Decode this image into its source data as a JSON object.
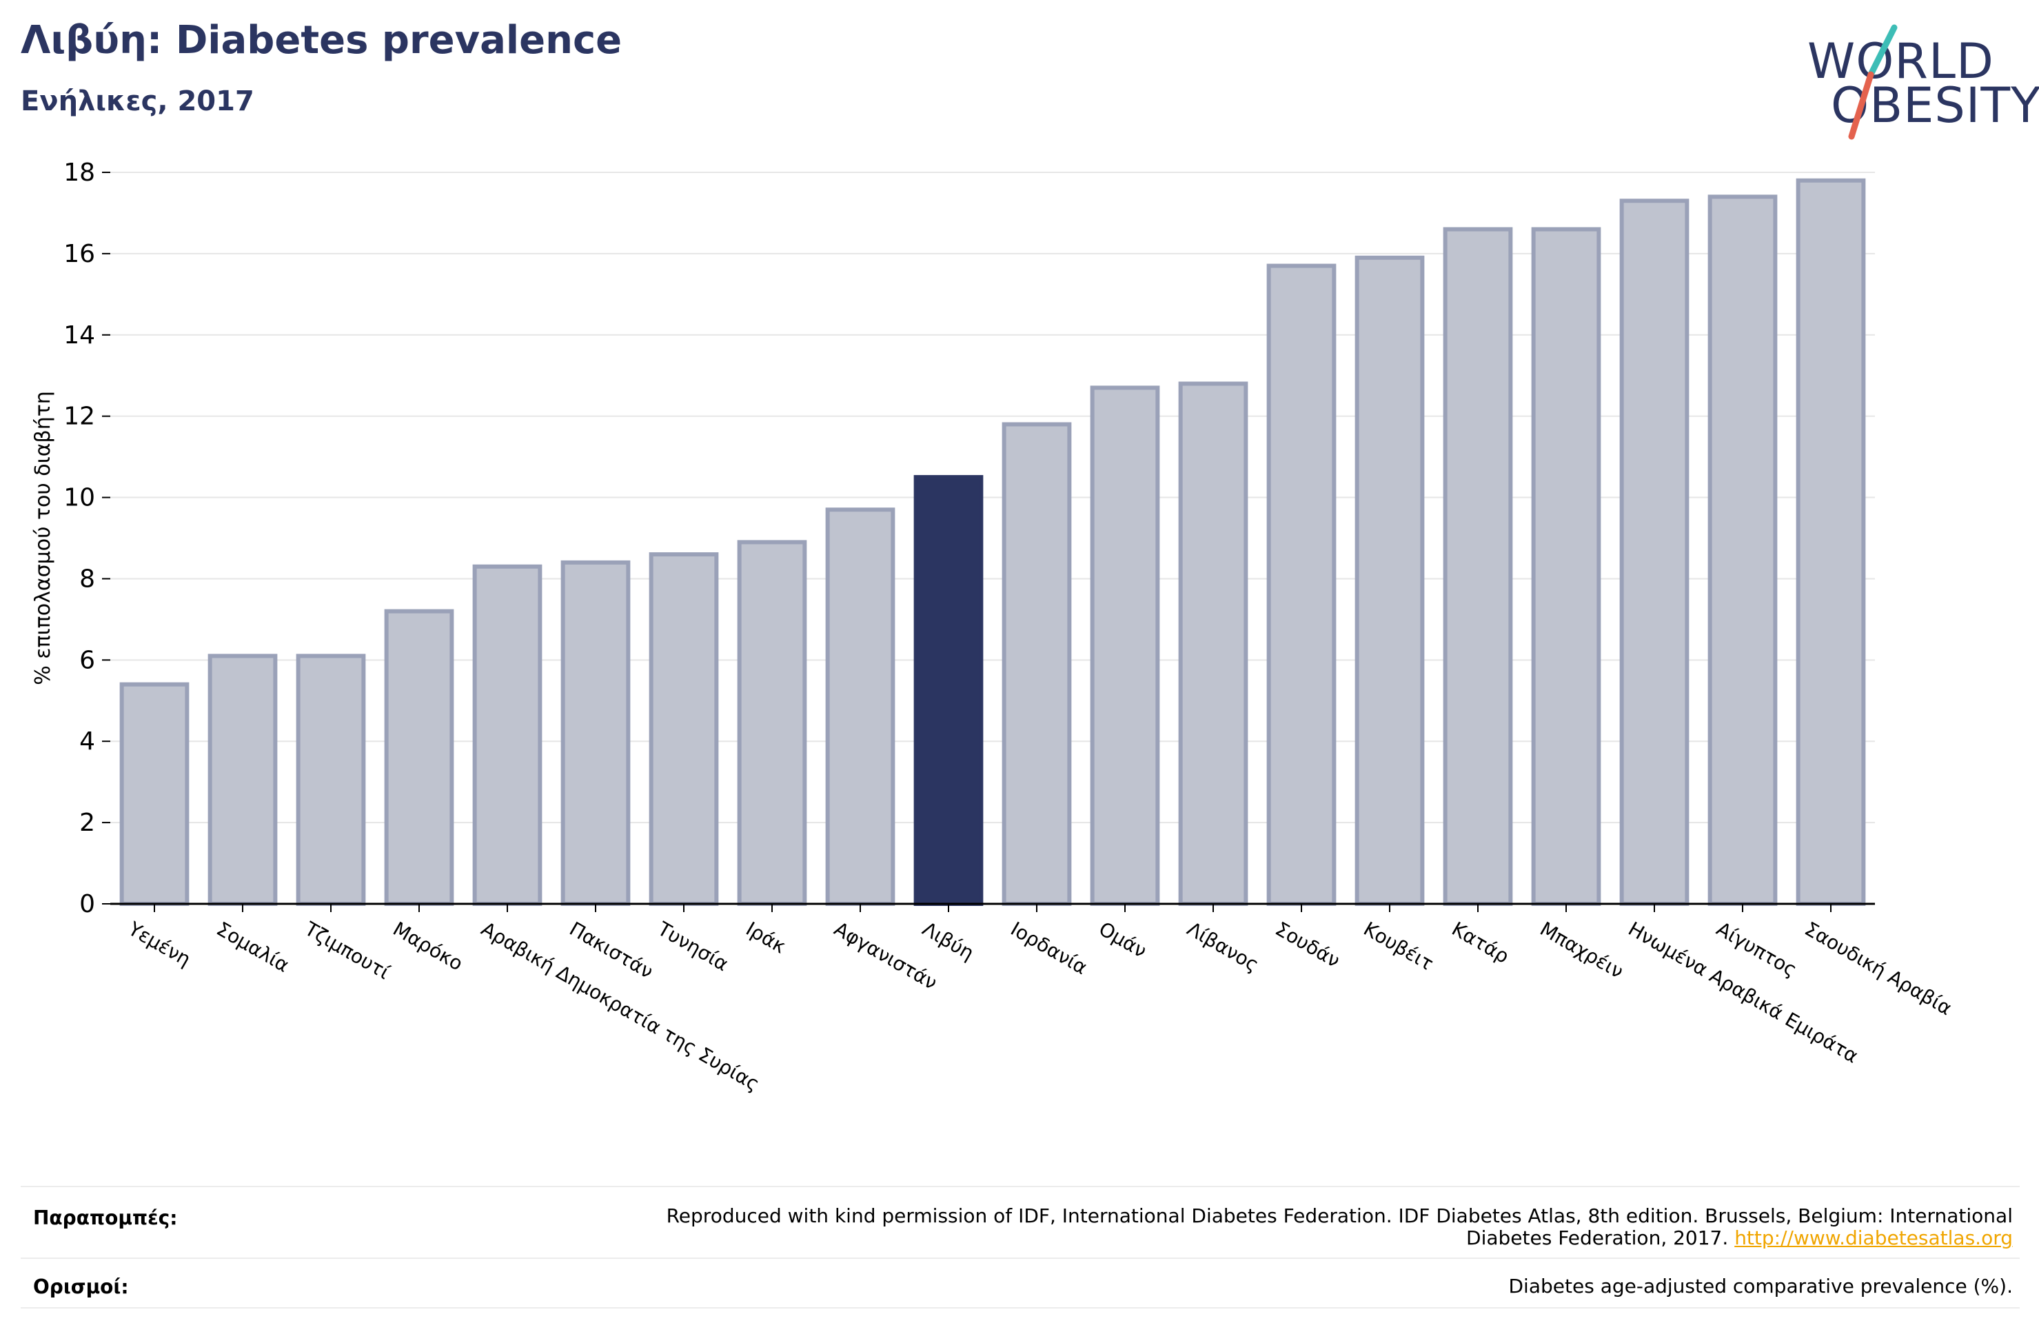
{
  "header": {
    "title": "Λιβύη: Diabetes prevalence",
    "subtitle": "Ενήλικες, 2017"
  },
  "logo": {
    "line1": "WORLD",
    "line2": "OBESITY",
    "slash_color_top": "#3dbdb6",
    "slash_color_bottom": "#e4624e"
  },
  "colors": {
    "bar_default": "#bfc3cf",
    "bar_edge": "#9aa1b8",
    "bar_highlight": "#2b3561",
    "text_dark": "#2b3561",
    "link": "#f0a500"
  },
  "chart_data": {
    "type": "bar",
    "ylabel": "% επιπολασμού του διαβήτη",
    "xlabel": "",
    "ylim": [
      0,
      18
    ],
    "yticks": [
      0,
      2,
      4,
      6,
      8,
      10,
      12,
      14,
      16,
      18
    ],
    "grid": true,
    "highlight": "Λιβύη",
    "categories": [
      "Υεμένη",
      "Σομαλία",
      "Τζιμπουτί",
      "Μαρόκο",
      "Αραβική Δημοκρατία της Συρίας",
      "Πακιστάν",
      "Τυνησία",
      "Ιράκ",
      "Αφγανιστάν",
      "Λιβύη",
      "Ιορδανία",
      "Ομάν",
      "Λίβανος",
      "Σουδάν",
      "Κουβέιτ",
      "Κατάρ",
      "Μπαχρέιν",
      "Ηνωμένα Αραβικά Εμιράτα",
      "Αίγυπτος",
      "Σαουδική Αραβία"
    ],
    "values": [
      5.4,
      6.1,
      6.1,
      7.2,
      8.3,
      8.4,
      8.6,
      8.9,
      9.7,
      10.5,
      11.8,
      12.7,
      12.8,
      15.7,
      15.9,
      16.6,
      16.6,
      17.3,
      17.4,
      17.8
    ]
  },
  "footer": {
    "references_label": "Παραπομπές:",
    "references_text": "Reproduced with kind permission of IDF, International Diabetes Federation. IDF Diabetes Atlas, 8th edition. Brussels, Belgium: International",
    "references_text2": "Diabetes Federation, 2017.",
    "references_link": "http://www.diabetesatlas.org",
    "definitions_label": "Ορισμοί:",
    "definitions_text": "Diabetes age-adjusted comparative prevalence (%)."
  }
}
